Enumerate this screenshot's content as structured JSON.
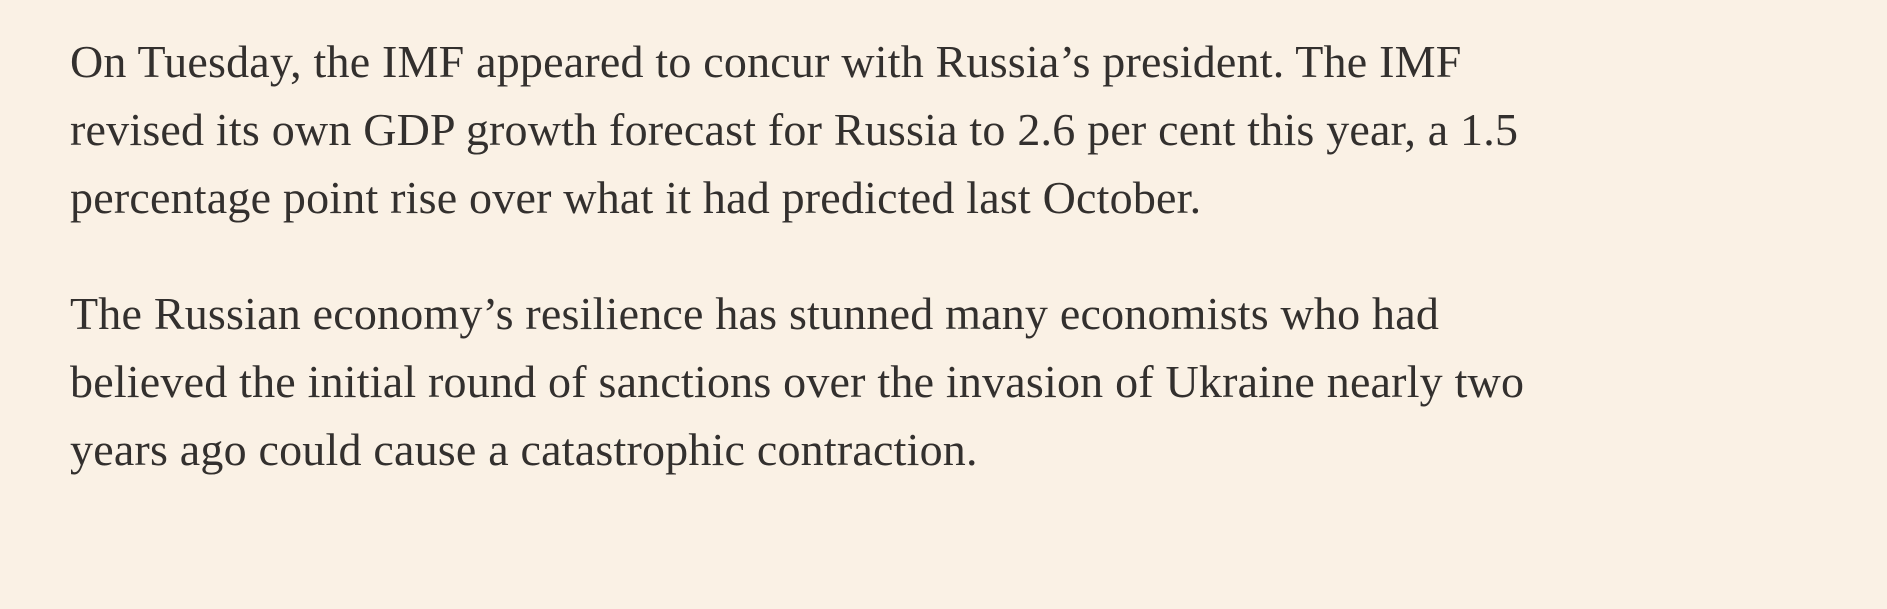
{
  "page": {
    "background_color": "#FAF1E5",
    "text_color": "#33302E"
  },
  "article": {
    "paragraphs": [
      {
        "text": "On Tuesday, the IMF appeared to concur with Russia’s president. The IMF\nrevised its own GDP growth forecast for Russia to 2.6 per cent this year, a 1.5\npercentage point rise over what it had predicted last October."
      },
      {
        "text": "The Russian economy’s resilience has stunned many economists who had\nbelieved the initial round of sanctions over the invasion of Ukraine nearly two\nyears ago could cause a catastrophic contraction."
      }
    ]
  }
}
